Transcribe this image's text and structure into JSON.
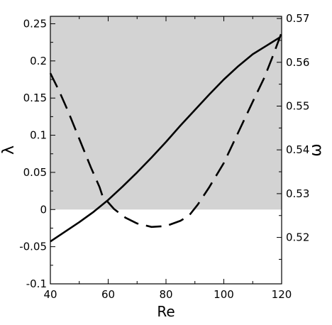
{
  "chart_data": {
    "type": "line",
    "title": "",
    "xlabel": "Re",
    "ylabel_left": "λ",
    "ylabel_right": "ω",
    "xlim": [
      40,
      120
    ],
    "ylim_left": [
      -0.1,
      0.26
    ],
    "ylim_right": [
      0.5094,
      0.5705
    ],
    "xticks": [
      40,
      60,
      80,
      100,
      120
    ],
    "xtick_labels": [
      "40",
      "60",
      "80",
      "100",
      "120"
    ],
    "yticks_left": [
      -0.1,
      -0.05,
      0,
      0.05,
      0.1,
      0.15,
      0.2,
      0.25
    ],
    "ytick_labels_left": [
      "-0.1",
      "-0.05",
      "0",
      "0.05",
      "0.1",
      "0.15",
      "0.2",
      "0.25"
    ],
    "yticks_right": [
      0.52,
      0.53,
      0.54,
      0.55,
      0.56,
      0.57
    ],
    "ytick_labels_right": [
      "0.52",
      "0.53",
      "0.54",
      "0.55",
      "0.56",
      "0.57"
    ],
    "shaded_region": {
      "axis": "left",
      "from": 0,
      "to": 0.26,
      "color": "#d3d3d3"
    },
    "grid": false,
    "legend": "none",
    "series": [
      {
        "axis": "left",
        "style": "solid",
        "color": "#000000",
        "x": [
          40,
          45,
          50,
          55,
          60,
          65,
          70,
          75,
          80,
          85,
          90,
          95,
          100,
          105,
          110,
          115,
          119.5
        ],
        "values": [
          -0.043,
          -0.03,
          -0.017,
          -0.003,
          0.013,
          0.031,
          0.05,
          0.07,
          0.091,
          0.113,
          0.134,
          0.155,
          0.175,
          0.193,
          0.209,
          0.221,
          0.232
        ]
      },
      {
        "axis": "right",
        "style": "dashed",
        "color": "#000000",
        "x": [
          40,
          43,
          46,
          50,
          54,
          57,
          58,
          62,
          66,
          70,
          75,
          80,
          85,
          88,
          91,
          95,
          100,
          105,
          110,
          114,
          117,
          120
        ],
        "values": [
          0.5575,
          0.5535,
          0.549,
          0.5425,
          0.536,
          0.5315,
          0.5295,
          0.5265,
          0.5245,
          0.5232,
          0.5224,
          0.5226,
          0.5238,
          0.525,
          0.5275,
          0.5315,
          0.537,
          0.544,
          0.551,
          0.5565,
          0.5615,
          0.5668
        ]
      }
    ]
  }
}
